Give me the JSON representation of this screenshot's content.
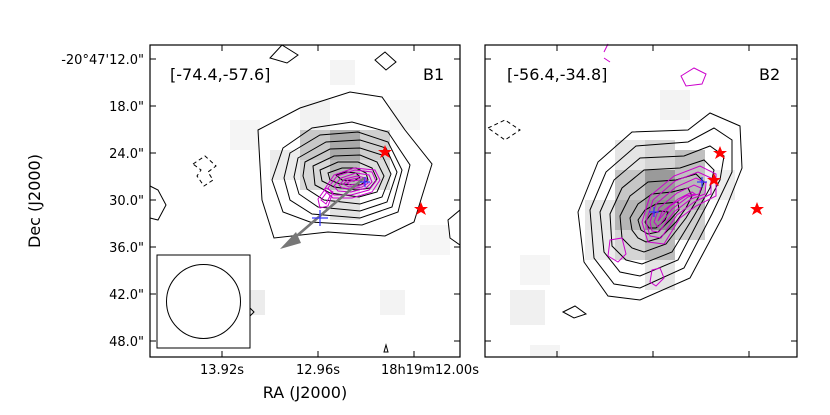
{
  "chart_data": {
    "type": "heatmap",
    "xlabel": "RA (J2000)",
    "ylabel": "Dec (J2000)",
    "x_ticks": [
      "13.92s",
      "12.96s",
      "18h19m12.00s"
    ],
    "y_ticks": [
      "-20°47'12.0\"",
      "18.0\"",
      "24.0\"",
      "30.0\"",
      "36.0\"",
      "42.0\"",
      "48.0\""
    ],
    "panels": [
      {
        "label": "B1",
        "velocity_range": "[-74.4,-57.6]",
        "series": [
          {
            "name": "",
            "color": "#000000",
            "kind": "black-contours",
            "levels": 9
          },
          {
            "name": "",
            "color": "#cc00cc",
            "kind": "magenta-contours",
            "levels": 8
          }
        ],
        "markers": [
          {
            "name": "red-star",
            "color": "#ff0000",
            "count": 2
          },
          {
            "name": "blue-cross",
            "color": "#3333ff",
            "count": 2
          }
        ],
        "has_beam_box": true,
        "has_arrow": true
      },
      {
        "label": "B2",
        "velocity_range": "[-56.4,-34.8]",
        "series": [
          {
            "name": "",
            "color": "#000000",
            "kind": "black-contours",
            "levels": 8
          },
          {
            "name": "",
            "color": "#cc00cc",
            "kind": "magenta-contours",
            "levels": 6
          }
        ],
        "markers": [
          {
            "name": "red-star",
            "color": "#ff0000",
            "count": 3
          },
          {
            "name": "blue-cross",
            "color": "#3333ff",
            "count": 2
          }
        ],
        "has_beam_box": false,
        "has_arrow": false
      }
    ]
  }
}
